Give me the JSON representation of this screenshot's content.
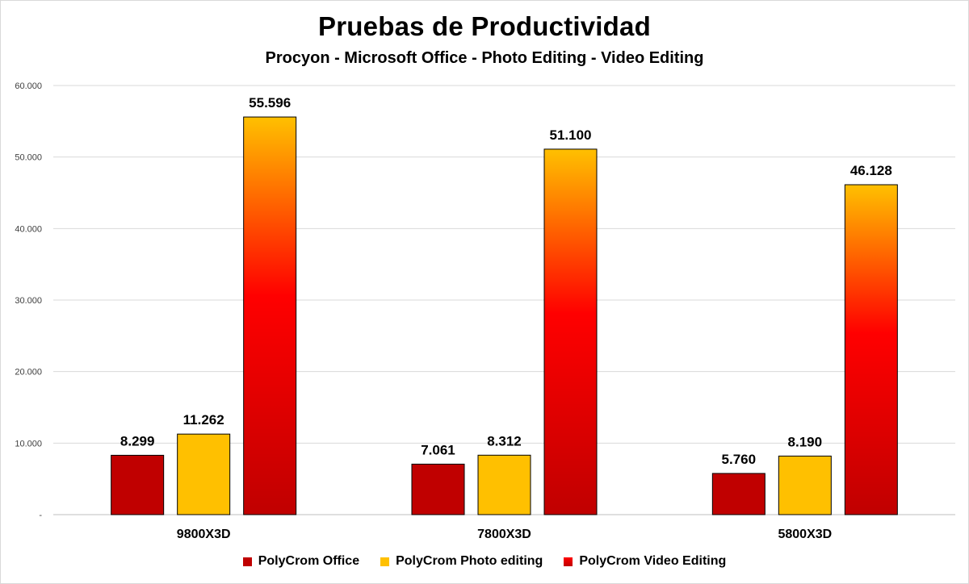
{
  "chart_data": {
    "type": "bar",
    "title": "Pruebas de Productividad",
    "subtitle": "Procyon  - Microsoft Office - Photo Editing - Video Editing",
    "categories": [
      "9800X3D",
      "7800X3D",
      "5800X3D"
    ],
    "series": [
      {
        "name": "PolyCrom Office",
        "values": [
          8299,
          7061,
          5760
        ],
        "labels": [
          "8.299",
          "7.061",
          "5.760"
        ],
        "color": "#c00000"
      },
      {
        "name": "PolyCrom Photo editing",
        "values": [
          11262,
          8312,
          8190
        ],
        "labels": [
          "11.262",
          "8.312",
          "8.190"
        ],
        "color": "#ffc000"
      },
      {
        "name": "PolyCrom Video Editing",
        "values": [
          55596,
          51100,
          46128
        ],
        "labels": [
          "55.596",
          "51.100",
          "46.128"
        ],
        "color": "#ff0000"
      }
    ],
    "yticks": [
      "-",
      "10.000",
      "20.000",
      "30.000",
      "40.000",
      "50.000",
      "60.000"
    ],
    "ylim": [
      0,
      60000
    ],
    "grid": true,
    "legend_position": "bottom"
  }
}
